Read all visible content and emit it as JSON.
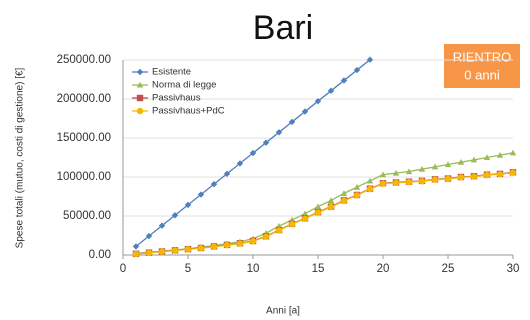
{
  "chart_data": {
    "type": "line",
    "title": "Bari",
    "x_label": "Anni [a]",
    "y_label": "Spese totali (mutuo, costi di gestione) [€]",
    "x": [
      1,
      2,
      3,
      4,
      5,
      6,
      7,
      8,
      9,
      10,
      11,
      12,
      13,
      14,
      15,
      16,
      17,
      18,
      19,
      20,
      21,
      22,
      23,
      24,
      25,
      26,
      27,
      28,
      29,
      30
    ],
    "series": [
      {
        "name": "Esistente",
        "color": "#4f81bd",
        "marker": "diamond",
        "values": [
          11000,
          24300,
          37600,
          50900,
          64200,
          77500,
          90800,
          104100,
          117400,
          130700,
          144000,
          157300,
          170600,
          183900,
          197200,
          210500,
          223800,
          237100,
          250400,
          null,
          null,
          null,
          null,
          null,
          null,
          null,
          null,
          null,
          null,
          null
        ]
      },
      {
        "name": "Norma di legge",
        "color": "#9bbb59",
        "marker": "triangle",
        "values": [
          2000,
          3500,
          5000,
          6500,
          8000,
          10000,
          12000,
          14500,
          17000,
          21000,
          28000,
          37000,
          45000,
          53000,
          62000,
          70000,
          79000,
          87000,
          95000,
          103000,
          105000,
          107000,
          110000,
          113000,
          116000,
          119000,
          122000,
          125000,
          128000,
          131000
        ]
      },
      {
        "name": "Passivhaus",
        "color": "#c0504d",
        "marker": "square",
        "values": [
          1500,
          3000,
          4500,
          6000,
          7500,
          9000,
          11000,
          13000,
          15000,
          18000,
          24000,
          32000,
          40000,
          47000,
          55000,
          62000,
          70000,
          77000,
          85000,
          92000,
          93000,
          94000,
          95000,
          97000,
          98000,
          100000,
          101000,
          103000,
          104000,
          106000
        ]
      },
      {
        "name": "Passivhaus+PdC",
        "color": "#f5b800",
        "marker": "circle",
        "values": [
          1200,
          2700,
          4200,
          5700,
          7200,
          8700,
          10600,
          12600,
          14600,
          17500,
          23500,
          31500,
          39500,
          46500,
          54500,
          61500,
          69500,
          76500,
          84500,
          91500,
          92500,
          93500,
          94500,
          96500,
          97500,
          99500,
          100500,
          102500,
          103500,
          105500
        ]
      }
    ],
    "xlim": [
      0,
      30
    ],
    "xticks": [
      0,
      5,
      10,
      15,
      20,
      25,
      30
    ],
    "ylim": [
      0,
      250000
    ],
    "yticks": [
      {
        "value": 0,
        "label": "0.00"
      },
      {
        "value": 50000,
        "label": "50000.00"
      },
      {
        "value": 100000,
        "label": "100000.00"
      },
      {
        "value": 150000,
        "label": "150000.00"
      },
      {
        "value": 200000,
        "label": "200000.00"
      },
      {
        "value": 250000,
        "label": "250000.00"
      }
    ],
    "grid": true,
    "legend": "upper left",
    "annotation": {
      "title": "RIENTRO",
      "text": "0 anni",
      "color": "#f79646"
    }
  }
}
